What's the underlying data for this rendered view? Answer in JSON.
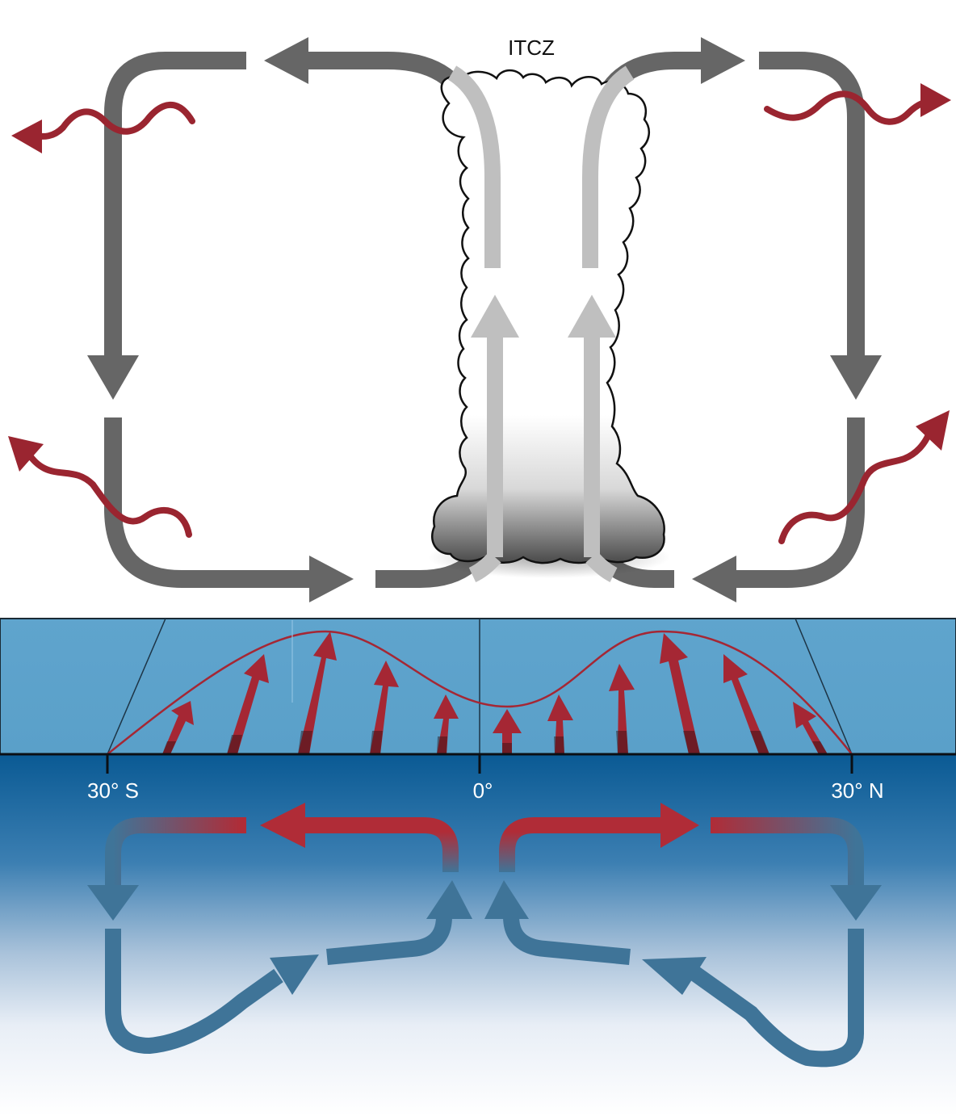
{
  "labels": {
    "itcz": "ITCZ",
    "lat_south": "30° S",
    "lat_equator": "0°",
    "lat_north": "30° N"
  },
  "colors": {
    "atmos_cell": "#666666",
    "updraft": "#bfbfbf",
    "heat_arrow": "#9a2530",
    "ocean_band_top": "#5fa4cd",
    "ocean_band_bottom": "#0a5a94",
    "ocean_cell": "#3f7498",
    "ocean_surface_flow": "#b02c37"
  },
  "icons": {
    "heat_flux": "wavy-arrow-icon",
    "cloud": "cumulonimbus-cloud-icon"
  }
}
